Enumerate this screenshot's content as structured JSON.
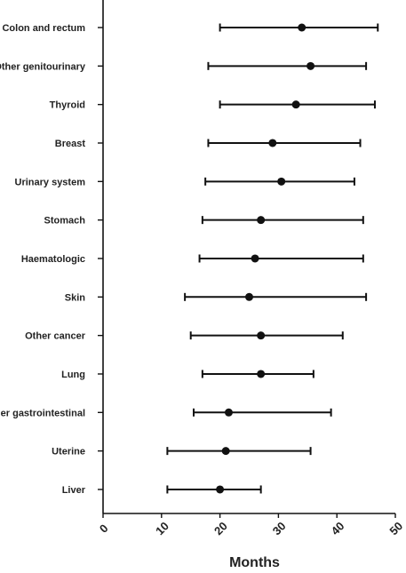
{
  "chart_data": {
    "type": "scatter",
    "orientation": "horizontal-forest",
    "title": "",
    "xlabel": "Months",
    "ylabel": "",
    "xlim": [
      0,
      50
    ],
    "xticks": [
      0,
      10,
      20,
      30,
      40,
      50
    ],
    "grid": false,
    "legend": "none",
    "categories": [
      "Colon and rectum",
      "Other genitourinary",
      "Thyroid",
      "Breast",
      "Urinary system",
      "Stomach",
      "Haematologic",
      "Skin",
      "Other cancer",
      "Lung",
      "Other gastrointestinal",
      "Uterine",
      "Liver"
    ],
    "values": [
      34,
      35.5,
      33,
      29,
      30.5,
      27,
      26,
      25,
      27,
      27,
      21.5,
      21,
      20
    ],
    "lower": [
      20,
      18,
      20,
      18,
      17.5,
      17,
      16.5,
      14,
      15,
      17,
      15.5,
      11,
      11
    ],
    "upper": [
      47,
      45,
      46.5,
      44,
      43,
      44.5,
      44.5,
      45,
      41,
      36,
      39,
      35.5,
      27
    ],
    "colors": {
      "marks": "#111111"
    }
  }
}
